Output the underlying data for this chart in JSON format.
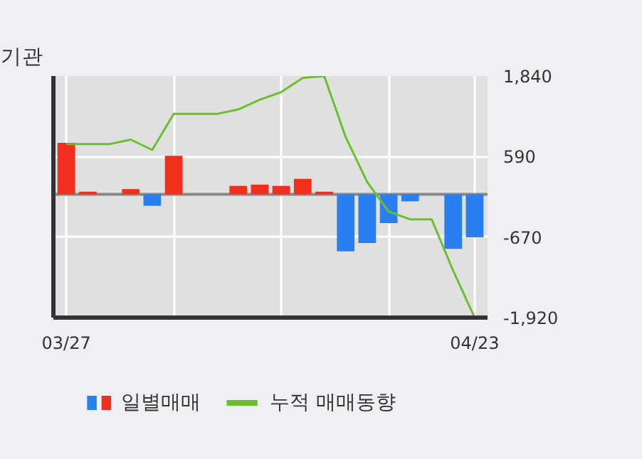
{
  "chart_data": {
    "type": "bar",
    "title": "기관",
    "categories": [
      "03/27",
      null,
      null,
      null,
      null,
      null,
      null,
      null,
      null,
      null,
      null,
      null,
      null,
      null,
      null,
      null,
      null,
      null,
      null,
      "04/23"
    ],
    "series": [
      {
        "name": "일별매매",
        "colors": [
          "#f0301c",
          "#f0301c",
          null,
          "#f0301c",
          "#2a7ff0",
          "#f0301c",
          null,
          null,
          "#f0301c",
          "#f0301c",
          "#f0301c",
          "#f0301c",
          "#f0301c",
          "#2a7ff0",
          "#2a7ff0",
          "#2a7ff0",
          "#2a7ff0",
          null,
          "#2a7ff0",
          "#2a7ff0"
        ],
        "values": [
          800,
          40,
          null,
          80,
          -180,
          600,
          null,
          null,
          130,
          150,
          130,
          240,
          40,
          -890,
          -760,
          -450,
          -110,
          null,
          -850,
          -670
        ]
      },
      {
        "name": "누적 매매동향",
        "type": "line",
        "color": "#6cbf2c",
        "values": [
          780,
          780,
          780,
          850,
          690,
          1250,
          1250,
          1250,
          1320,
          1470,
          1590,
          1810,
          1840,
          890,
          190,
          -270,
          -390,
          -390,
          -1190,
          -1920
        ]
      }
    ],
    "ylim": [
      -1920,
      1840
    ],
    "yticks": [
      {
        "value": -1920,
        "label": "-1,920"
      },
      -670,
      590,
      {
        "value": 1840,
        "label": "1,840"
      }
    ],
    "grid": true,
    "legend": "bottom",
    "ref_lines": [
      {
        "axis": "y",
        "value": 0,
        "color": "#888888"
      }
    ]
  }
}
